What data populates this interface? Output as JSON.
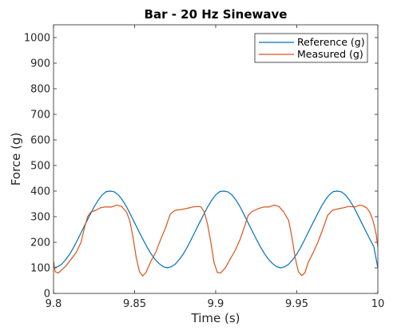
{
  "chart_data": {
    "type": "line",
    "title": "Bar - 20 Hz Sinewave",
    "xlabel": "Time (s)",
    "ylabel": "Force (g)",
    "xlim": [
      9.8,
      10
    ],
    "ylim": [
      0,
      1050
    ],
    "x_ticks": [
      9.8,
      9.85,
      9.9,
      9.95,
      10
    ],
    "x_tick_labels": [
      "9.8",
      "9.85",
      "9.9",
      "9.95",
      "10"
    ],
    "y_ticks": [
      0,
      100,
      200,
      300,
      400,
      500,
      600,
      700,
      800,
      900,
      1000
    ],
    "y_tick_labels": [
      "0",
      "100",
      "200",
      "300",
      "400",
      "500",
      "600",
      "700",
      "800",
      "900",
      "1000"
    ],
    "grid": false,
    "legend_position": "top-right",
    "series": [
      {
        "name": "Reference (g)",
        "color": "#0072BD",
        "x": [
          9.8,
          9.8025,
          9.805,
          9.8075,
          9.81,
          9.8125,
          9.815,
          9.8175,
          9.82,
          9.8225,
          9.825,
          9.8275,
          9.83,
          9.8325,
          9.835,
          9.8375,
          9.84,
          9.8425,
          9.845,
          9.8475,
          9.85,
          9.8525,
          9.855,
          9.8575,
          9.86,
          9.8625,
          9.865,
          9.8675,
          9.87,
          9.8725,
          9.875,
          9.8775,
          9.88,
          9.8825,
          9.885,
          9.8875,
          9.89,
          9.8925,
          9.895,
          9.8975,
          9.9,
          9.9025,
          9.905,
          9.9075,
          9.91,
          9.9125,
          9.915,
          9.9175,
          9.92,
          9.9225,
          9.925,
          9.9275,
          9.93,
          9.9325,
          9.935,
          9.9375,
          9.94,
          9.9425,
          9.945,
          9.9475,
          9.95,
          9.9525,
          9.955,
          9.9575,
          9.96,
          9.9625,
          9.965,
          9.9675,
          9.97,
          9.9725,
          9.975,
          9.9775,
          9.98,
          9.9825,
          9.985,
          9.9875,
          9.99,
          9.9925,
          9.995,
          9.9975,
          10
        ],
        "y": [
          100,
          104,
          114,
          132,
          154,
          181,
          212,
          244,
          276,
          307,
          338,
          364,
          385,
          398,
          400,
          397,
          385,
          365,
          339,
          308,
          276,
          244,
          213,
          183,
          156,
          134,
          117,
          105,
          100,
          104,
          114,
          132,
          154,
          181,
          212,
          244,
          276,
          307,
          338,
          364,
          385,
          398,
          400,
          397,
          385,
          365,
          339,
          308,
          276,
          244,
          213,
          183,
          156,
          134,
          117,
          105,
          100,
          104,
          114,
          132,
          154,
          181,
          212,
          244,
          276,
          307,
          338,
          364,
          385,
          398,
          400,
          397,
          385,
          365,
          339,
          308,
          276,
          244,
          213,
          183,
          100
        ]
      },
      {
        "name": "Measured (g)",
        "color": "#D95319",
        "x": [
          9.8,
          9.801,
          9.803,
          9.805,
          9.808,
          9.811,
          9.814,
          9.817,
          9.819,
          9.821,
          9.823,
          9.826,
          9.829,
          9.832,
          9.836,
          9.839,
          9.842,
          9.845,
          9.847,
          9.849,
          9.851,
          9.853,
          9.855,
          9.857,
          9.86,
          9.863,
          9.866,
          9.869,
          9.872,
          9.875,
          9.879,
          9.882,
          9.886,
          9.889,
          9.891,
          9.893,
          9.895,
          9.897,
          9.899,
          9.901,
          9.903,
          9.906,
          9.909,
          9.912,
          9.915,
          9.918,
          9.92,
          9.922,
          9.924,
          9.927,
          9.93,
          9.933,
          9.936,
          9.939,
          9.942,
          9.945,
          9.947,
          9.949,
          9.951,
          9.953,
          9.955,
          9.957,
          9.96,
          9.963,
          9.966,
          9.969,
          9.972,
          9.975,
          9.979,
          9.982,
          9.986,
          9.989,
          9.991,
          9.993,
          9.995,
          9.997,
          9.999,
          10
        ],
        "y": [
          125,
          85,
          80,
          92,
          110,
          135,
          160,
          200,
          255,
          300,
          318,
          325,
          335,
          338,
          338,
          345,
          340,
          318,
          285,
          220,
          140,
          85,
          68,
          82,
          125,
          160,
          210,
          255,
          310,
          325,
          328,
          332,
          338,
          340,
          338,
          318,
          270,
          200,
          120,
          82,
          80,
          100,
          135,
          168,
          210,
          265,
          305,
          318,
          325,
          333,
          338,
          338,
          345,
          340,
          318,
          285,
          220,
          140,
          85,
          70,
          80,
          120,
          158,
          200,
          250,
          305,
          325,
          330,
          335,
          340,
          338,
          345,
          342,
          335,
          318,
          285,
          230,
          180
        ]
      }
    ]
  }
}
